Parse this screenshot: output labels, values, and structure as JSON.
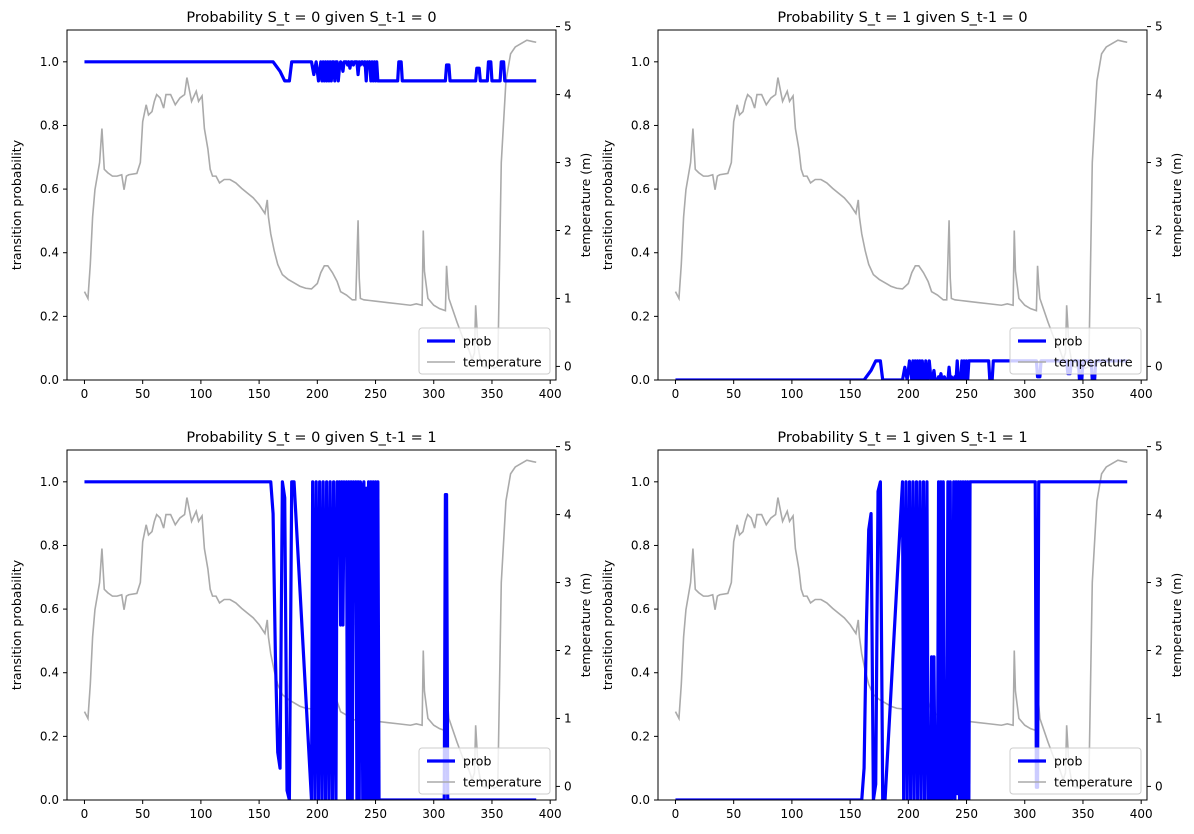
{
  "chart_data": {
    "type": "line",
    "temperature": {
      "x": [
        0,
        3,
        5,
        7,
        9,
        11,
        13,
        15,
        17,
        20,
        24,
        28,
        32,
        34,
        36,
        38,
        45,
        48,
        50,
        53,
        55,
        58,
        60,
        62,
        65,
        68,
        70,
        74,
        78,
        82,
        86,
        88,
        92,
        96,
        98,
        101,
        103,
        106,
        108,
        110,
        113,
        116,
        120,
        125,
        130,
        135,
        140,
        145,
        150,
        155,
        157,
        158,
        160,
        163,
        166,
        170,
        175,
        180,
        185,
        190,
        195,
        200,
        203,
        206,
        209,
        213,
        217,
        220,
        225,
        230,
        233,
        235,
        236,
        237,
        240,
        245,
        250,
        260,
        270,
        280,
        285,
        290,
        291,
        292,
        295,
        300,
        305,
        310,
        311,
        312,
        313,
        315,
        320,
        325,
        330,
        333,
        335,
        336,
        338,
        340,
        342,
        345,
        348,
        350,
        352,
        355,
        358,
        362,
        366,
        370,
        375,
        380,
        385,
        388
      ],
      "values": [
        1.1,
        1.0,
        1.5,
        2.2,
        2.6,
        2.8,
        3.0,
        3.5,
        2.9,
        2.85,
        2.8,
        2.8,
        2.82,
        2.6,
        2.8,
        2.82,
        2.84,
        3.0,
        3.6,
        3.85,
        3.7,
        3.75,
        3.9,
        4.0,
        3.95,
        3.8,
        4.0,
        4.0,
        3.85,
        3.95,
        4.0,
        4.25,
        3.9,
        4.05,
        3.9,
        3.98,
        3.5,
        3.2,
        2.9,
        2.8,
        2.8,
        2.7,
        2.75,
        2.75,
        2.7,
        2.62,
        2.55,
        2.48,
        2.38,
        2.25,
        2.45,
        2.2,
        1.95,
        1.7,
        1.5,
        1.35,
        1.28,
        1.23,
        1.18,
        1.15,
        1.14,
        1.22,
        1.38,
        1.48,
        1.48,
        1.38,
        1.25,
        1.1,
        1.05,
        0.98,
        0.98,
        2.15,
        1.3,
        1.0,
        0.98,
        0.97,
        0.96,
        0.94,
        0.92,
        0.9,
        0.92,
        0.9,
        2.0,
        1.4,
        1.0,
        0.9,
        0.85,
        0.82,
        1.48,
        1.2,
        1.0,
        0.9,
        0.65,
        0.42,
        0.25,
        0.1,
        0.2,
        0.9,
        0.3,
        0.1,
        0.0,
        -0.02,
        0.0,
        0.02,
        -0.03,
        0.0,
        3.0,
        4.2,
        4.6,
        4.7,
        4.75,
        4.8,
        4.78,
        4.77
      ]
    },
    "series_style": {
      "prob": "#0000ff",
      "temperature": "#aaaaaa"
    },
    "subplots": [
      {
        "title": "Probability S_t = 0 given S_t-1 = 0",
        "ylabel": "transition probability",
        "y2label": "temperature (m)",
        "prob": {
          "x": [
            0,
            162,
            168,
            172,
            176,
            178,
            181,
            185,
            195,
            197,
            199,
            201,
            203,
            204,
            205,
            206,
            207,
            208,
            209,
            210,
            211,
            212,
            213,
            214,
            215,
            216,
            217,
            218,
            219,
            220,
            221,
            222,
            223,
            224,
            225,
            226,
            227,
            228,
            229,
            230,
            231,
            232,
            233,
            234,
            235,
            236,
            237,
            238,
            239,
            240,
            241,
            242,
            243,
            244,
            245,
            246,
            247,
            248,
            249,
            250,
            251,
            252,
            253,
            254,
            255,
            269,
            270,
            272,
            273,
            310,
            311,
            313,
            314,
            336,
            337,
            339,
            340,
            346,
            347,
            349,
            350,
            357,
            358,
            360,
            361,
            388
          ],
          "values": [
            1.0,
            1.0,
            0.97,
            0.94,
            0.94,
            1.0,
            1.0,
            1.0,
            1.0,
            0.96,
            1.0,
            0.94,
            1.0,
            0.94,
            1.0,
            0.94,
            1.0,
            0.94,
            1.0,
            0.94,
            1.0,
            0.94,
            1.0,
            1.0,
            0.94,
            1.0,
            1.0,
            0.94,
            0.98,
            1.0,
            0.99,
            0.97,
            1.0,
            1.0,
            1.0,
            0.99,
            1.0,
            0.98,
            1.0,
            1.0,
            0.99,
            1.0,
            1.0,
            1.0,
            0.96,
            1.0,
            0.99,
            1.0,
            1.0,
            0.99,
            1.0,
            0.94,
            1.0,
            0.99,
            1.0,
            0.94,
            1.0,
            0.94,
            1.0,
            0.94,
            1.0,
            0.94,
            0.94,
            0.94,
            0.94,
            0.94,
            1.0,
            1.0,
            0.94,
            0.94,
            0.99,
            0.99,
            0.94,
            0.94,
            0.98,
            0.98,
            0.94,
            0.94,
            1.0,
            1.0,
            0.94,
            0.94,
            1.0,
            1.0,
            0.94,
            0.94
          ]
        }
      },
      {
        "title": "Probability S_t = 1 given S_t-1 = 0",
        "ylabel": "transition probability",
        "y2label": "temperature (m)",
        "prob": {
          "x": [
            0,
            162,
            168,
            172,
            176,
            178,
            181,
            185,
            195,
            197,
            199,
            201,
            203,
            204,
            205,
            206,
            207,
            208,
            209,
            210,
            211,
            212,
            213,
            214,
            215,
            216,
            217,
            218,
            219,
            220,
            221,
            222,
            223,
            224,
            225,
            226,
            227,
            228,
            229,
            230,
            231,
            232,
            233,
            234,
            235,
            236,
            237,
            238,
            239,
            240,
            241,
            242,
            243,
            244,
            245,
            246,
            247,
            248,
            249,
            250,
            251,
            252,
            253,
            254,
            255,
            269,
            270,
            272,
            273,
            310,
            311,
            313,
            314,
            336,
            337,
            339,
            340,
            346,
            347,
            349,
            350,
            357,
            358,
            360,
            361,
            388
          ],
          "values": [
            0.0,
            0.0,
            0.03,
            0.06,
            0.06,
            0.0,
            0.0,
            0.0,
            0.0,
            0.04,
            0.0,
            0.06,
            0.0,
            0.06,
            0.0,
            0.06,
            0.0,
            0.06,
            0.0,
            0.06,
            0.0,
            0.06,
            0.0,
            0.0,
            0.06,
            0.0,
            0.0,
            0.06,
            0.02,
            0.0,
            0.01,
            0.03,
            0.0,
            0.0,
            0.0,
            0.01,
            0.0,
            0.02,
            0.0,
            0.0,
            0.01,
            0.0,
            0.0,
            0.0,
            0.04,
            0.0,
            0.01,
            0.0,
            0.0,
            0.01,
            0.0,
            0.06,
            0.0,
            0.01,
            0.0,
            0.06,
            0.0,
            0.06,
            0.0,
            0.06,
            0.0,
            0.06,
            0.06,
            0.06,
            0.06,
            0.06,
            0.0,
            0.0,
            0.06,
            0.06,
            0.01,
            0.01,
            0.06,
            0.06,
            0.02,
            0.02,
            0.06,
            0.06,
            0.0,
            0.0,
            0.06,
            0.06,
            0.0,
            0.0,
            0.06,
            0.06
          ]
        }
      },
      {
        "title": "Probability S_t = 0 given S_t-1 = 1",
        "ylabel": "transition probability",
        "y2label": "temperature (m)",
        "prob": {
          "x": [
            0,
            157,
            160,
            162,
            164,
            166,
            168,
            170,
            172,
            174,
            176,
            178,
            180,
            195,
            196,
            198,
            199,
            201,
            202,
            204,
            205,
            207,
            208,
            210,
            211,
            213,
            214,
            216,
            217,
            218,
            219,
            220,
            221,
            222,
            223,
            224,
            225,
            226,
            227,
            228,
            229,
            230,
            231,
            232,
            233,
            234,
            235,
            236,
            237,
            238,
            239,
            240,
            241,
            242,
            243,
            244,
            245,
            246,
            247,
            248,
            249,
            250,
            251,
            252,
            253,
            254,
            255,
            309,
            310,
            311,
            312,
            313,
            388
          ],
          "values": [
            1.0,
            1.0,
            1.0,
            0.9,
            0.45,
            0.15,
            0.1,
            1.0,
            0.95,
            0.03,
            0.0,
            1.0,
            1.0,
            0.0,
            1.0,
            0.0,
            1.0,
            0.0,
            1.0,
            0.0,
            1.0,
            0.0,
            1.0,
            0.0,
            1.0,
            0.0,
            1.0,
            0.0,
            1.0,
            0.8,
            1.0,
            0.55,
            1.0,
            0.55,
            1.0,
            0.98,
            1.0,
            0.0,
            1.0,
            0.0,
            1.0,
            0.0,
            1.0,
            0.97,
            1.0,
            0.0,
            1.0,
            0.0,
            1.0,
            0.98,
            0.0,
            1.0,
            0.0,
            0.98,
            0.0,
            1.0,
            0.0,
            1.0,
            0.0,
            1.0,
            0.0,
            1.0,
            0.0,
            1.0,
            0.0,
            0.0,
            0.0,
            0.0,
            0.96,
            0.96,
            0.0,
            0.0,
            0.0
          ]
        }
      },
      {
        "title": "Probability S_t = 1 given S_t-1 = 1",
        "ylabel": "transition probability",
        "y2label": "temperature (m)",
        "prob": {
          "x": [
            0,
            157,
            160,
            162,
            164,
            166,
            168,
            170,
            172,
            174,
            176,
            178,
            180,
            195,
            196,
            198,
            199,
            201,
            202,
            204,
            205,
            207,
            208,
            210,
            211,
            213,
            214,
            216,
            217,
            218,
            219,
            220,
            221,
            222,
            223,
            224,
            225,
            226,
            227,
            228,
            229,
            230,
            231,
            232,
            233,
            234,
            235,
            236,
            237,
            238,
            239,
            240,
            241,
            242,
            243,
            244,
            245,
            246,
            247,
            248,
            249,
            250,
            251,
            252,
            253,
            254,
            255,
            309,
            310,
            311,
            312,
            313,
            388
          ],
          "values": [
            0.0,
            0.0,
            0.0,
            0.1,
            0.55,
            0.85,
            0.9,
            0.0,
            0.05,
            0.97,
            1.0,
            0.0,
            0.0,
            1.0,
            0.0,
            1.0,
            0.0,
            1.0,
            0.0,
            1.0,
            0.0,
            1.0,
            0.0,
            1.0,
            0.0,
            1.0,
            0.0,
            1.0,
            0.0,
            0.2,
            0.0,
            0.45,
            0.0,
            0.45,
            0.0,
            0.02,
            0.0,
            1.0,
            0.0,
            1.0,
            0.0,
            1.0,
            0.0,
            0.03,
            0.0,
            1.0,
            0.0,
            1.0,
            0.0,
            0.02,
            1.0,
            0.0,
            1.0,
            0.02,
            1.0,
            0.0,
            1.0,
            0.0,
            1.0,
            0.0,
            1.0,
            0.0,
            1.0,
            0.0,
            1.0,
            1.0,
            1.0,
            1.0,
            0.04,
            0.04,
            1.0,
            1.0,
            1.0
          ]
        }
      }
    ],
    "xlim": [
      -15,
      405
    ],
    "ylim": [
      0,
      1.1
    ],
    "y2lim": [
      -0.2,
      4.95
    ],
    "xticks": [
      "0",
      "50",
      "100",
      "150",
      "200",
      "250",
      "300",
      "350",
      "400"
    ],
    "yticks": [
      "0.0",
      "0.2",
      "0.4",
      "0.6",
      "0.8",
      "1.0"
    ],
    "y2ticks": [
      "0",
      "1",
      "2",
      "3",
      "4",
      "5"
    ],
    "legend": {
      "position": "lower right",
      "entries": [
        "prob",
        "temperature"
      ]
    },
    "grid": false
  }
}
